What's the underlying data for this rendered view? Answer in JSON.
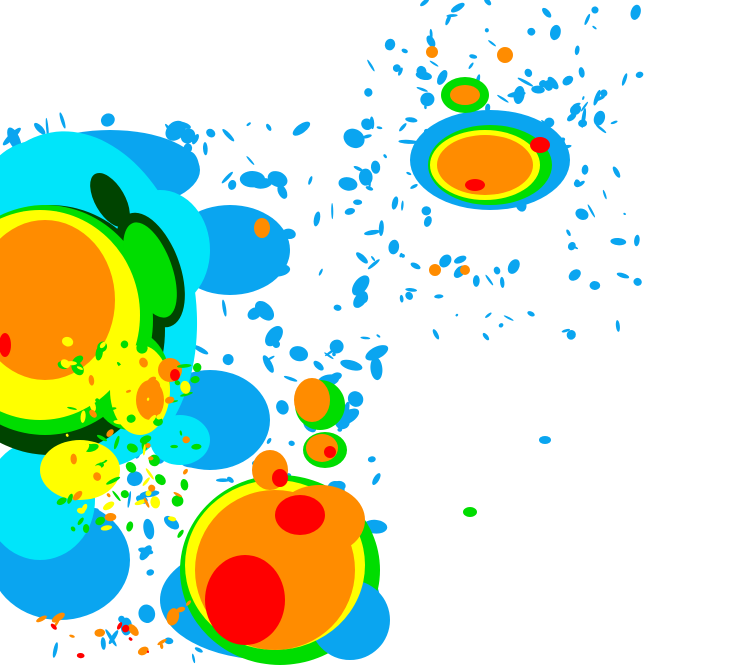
{
  "radar": {
    "palette": {
      "light_blue": "#0aa5f0",
      "cyan": "#00e5fa",
      "dark_green": "#004400",
      "green": "#00dd00",
      "yellow": "#ffff00",
      "orange": "#ff8c00",
      "red": "#ff0000"
    }
  }
}
